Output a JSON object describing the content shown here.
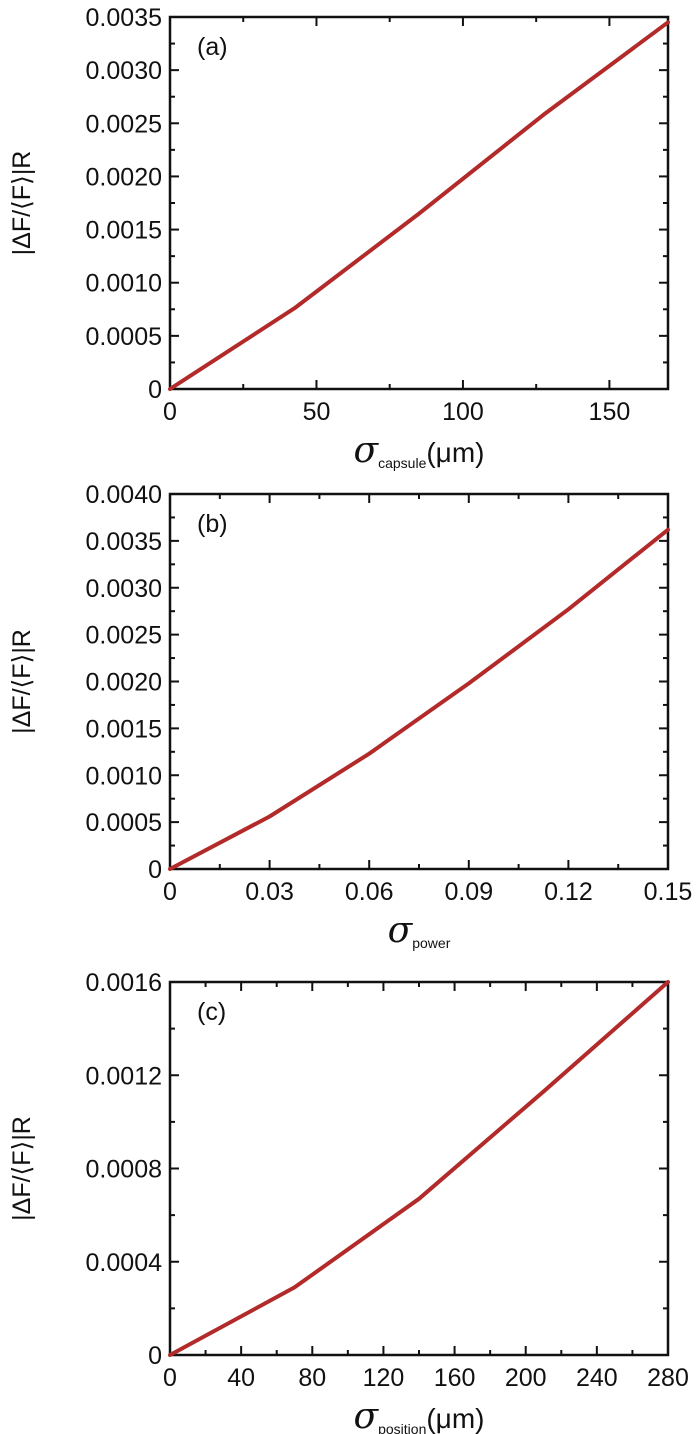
{
  "chart_data": [
    {
      "type": "line",
      "panel_label": "(a)",
      "ylabel": "|ΔF/⟨F⟩|R",
      "xlabel": {
        "symbol": "σ",
        "subscript": "capsule",
        "unit": "(μm)"
      },
      "xlim": [
        0,
        170
      ],
      "ylim": [
        0,
        0.0035
      ],
      "xticks": [
        0,
        50,
        100,
        150
      ],
      "xtick_labels": [
        "0",
        "50",
        "100",
        "150"
      ],
      "yticks": [
        0,
        0.0005,
        0.001,
        0.0015,
        0.002,
        0.0025,
        0.003,
        0.0035
      ],
      "ytick_labels": [
        "0",
        "0.0005",
        "0.0010",
        "0.0015",
        "0.0020",
        "0.0025",
        "0.0030",
        "0.0035"
      ],
      "grid": false,
      "series": [
        {
          "color": "#b22a2a",
          "x": [
            0,
            42.5,
            85,
            127.5,
            170
          ],
          "y": [
            0,
            0.00076,
            0.00165,
            0.00258,
            0.00345
          ]
        }
      ]
    },
    {
      "type": "line",
      "panel_label": "(b)",
      "ylabel": "|ΔF/⟨F⟩|R",
      "xlabel": {
        "symbol": "σ",
        "subscript": "power",
        "unit": ""
      },
      "xlim": [
        0,
        0.15
      ],
      "ylim": [
        0,
        0.004
      ],
      "xticks": [
        0,
        0.03,
        0.06,
        0.09,
        0.12,
        0.15
      ],
      "xtick_labels": [
        "0",
        "0.03",
        "0.06",
        "0.09",
        "0.12",
        "0.15"
      ],
      "yticks": [
        0,
        0.0005,
        0.001,
        0.0015,
        0.002,
        0.0025,
        0.003,
        0.0035,
        0.004
      ],
      "ytick_labels": [
        "0",
        "0.0005",
        "0.0010",
        "0.0015",
        "0.0020",
        "0.0025",
        "0.0030",
        "0.0035",
        "0.0040"
      ],
      "grid": false,
      "series": [
        {
          "color": "#b22a2a",
          "x": [
            0,
            0.03,
            0.06,
            0.09,
            0.12,
            0.15
          ],
          "y": [
            0,
            0.00056,
            0.00123,
            0.00198,
            0.00277,
            0.00362
          ]
        }
      ]
    },
    {
      "type": "line",
      "panel_label": "(c)",
      "ylabel": "|ΔF/⟨F⟩|R",
      "xlabel": {
        "symbol": "σ",
        "subscript": "position",
        "unit": "(μm)"
      },
      "xlim": [
        0,
        280
      ],
      "ylim": [
        0,
        0.0016
      ],
      "xticks": [
        0,
        40,
        80,
        120,
        160,
        200,
        240,
        280
      ],
      "xtick_labels": [
        "0",
        "40",
        "80",
        "120",
        "160",
        "200",
        "240",
        "280"
      ],
      "yticks": [
        0,
        0.0004,
        0.0008,
        0.0012,
        0.0016
      ],
      "ytick_labels": [
        "0",
        "0.0004",
        "0.0008",
        "0.0012",
        "0.0016"
      ],
      "grid": false,
      "series": [
        {
          "color": "#b22a2a",
          "x": [
            0,
            70,
            140,
            210,
            280
          ],
          "y": [
            0,
            0.00029,
            0.00067,
            0.00113,
            0.0016
          ]
        }
      ]
    }
  ]
}
